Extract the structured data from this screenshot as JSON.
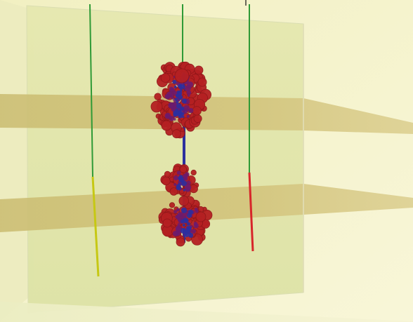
{
  "scene": {
    "background_color": "#f4f3cf",
    "panel_color": "#e7e8b3",
    "plane_color": "#d8c98a",
    "wire_colors": {
      "green": "#2f9a36",
      "yellow": "#c6c814",
      "red": "#d7262a"
    },
    "cluster_colors": {
      "outer": "#b52022",
      "inner": "#6a1b70",
      "core": "#2c2f9e"
    }
  }
}
